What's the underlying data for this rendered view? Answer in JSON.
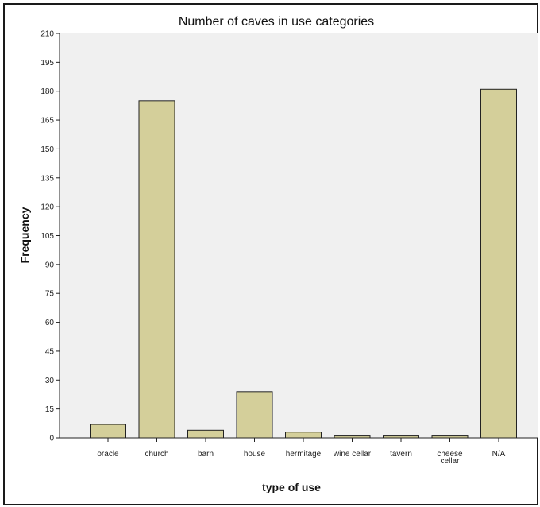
{
  "chart_data": {
    "type": "bar",
    "title": "Number of caves in use categories",
    "xlabel": "type of use",
    "ylabel": "Frequency",
    "categories": [
      "oracle",
      "church",
      "barn",
      "house",
      "hermitage",
      "wine cellar",
      "tavern",
      "cheese cellar",
      "N/A"
    ],
    "category_lines": [
      [
        "oracle"
      ],
      [
        "church"
      ],
      [
        "barn"
      ],
      [
        "house"
      ],
      [
        "hermitage"
      ],
      [
        "wine cellar"
      ],
      [
        "tavern"
      ],
      [
        "cheese",
        "cellar"
      ],
      [
        "N/A"
      ]
    ],
    "values": [
      7,
      175,
      4,
      24,
      3,
      1,
      1,
      1,
      181
    ],
    "ylim": [
      0,
      210
    ],
    "yticks": [
      0,
      15,
      30,
      45,
      60,
      75,
      90,
      105,
      120,
      135,
      150,
      165,
      180,
      195,
      210
    ],
    "grid": false,
    "bar_color": "#d4cf9a",
    "plot_background": "#f0f0f0",
    "bar_edge_color": "#222222"
  }
}
